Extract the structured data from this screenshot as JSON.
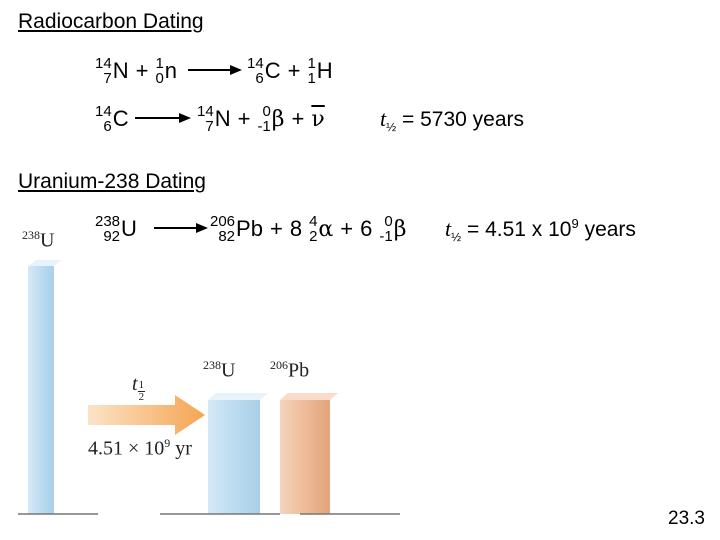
{
  "radiocarbon": {
    "title": "Radiocarbon Dating",
    "reaction1": {
      "left": [
        {
          "mass": "14",
          "atomic": "7",
          "symbol": "N"
        },
        "+",
        {
          "mass": "1",
          "atomic": "0",
          "symbol": "n"
        }
      ],
      "right": [
        {
          "mass": "14",
          "atomic": "6",
          "symbol": "C"
        },
        "+",
        {
          "mass": "1",
          "atomic": "1",
          "symbol": "H"
        }
      ]
    },
    "reaction2": {
      "left": [
        {
          "mass": "14",
          "atomic": "6",
          "symbol": "C"
        }
      ],
      "right": [
        {
          "mass": "14",
          "atomic": "7",
          "symbol": "N"
        },
        "+",
        {
          "mass": "0",
          "atomic": "-1",
          "symbol": "β"
        },
        "+",
        "ν"
      ]
    },
    "half_life": {
      "symbol": "t",
      "subscript": "½",
      "text": "= 5730 years"
    }
  },
  "uranium": {
    "title": "Uranium-238 Dating",
    "reaction": {
      "left": [
        {
          "mass": "238",
          "atomic": "92",
          "symbol": "U"
        }
      ],
      "right": [
        {
          "mass": "206",
          "atomic": "82",
          "symbol": "Pb"
        },
        "+",
        "8",
        {
          "mass": "4",
          "atomic": "2",
          "symbol": "α"
        },
        "+",
        "6",
        {
          "mass": "0",
          "atomic": "-1",
          "symbol": "β"
        }
      ]
    },
    "half_life": {
      "symbol": "t",
      "subscript": "½",
      "text": "= 4.51 x 10",
      "superscript": "9",
      "unit": "years"
    }
  },
  "figure": {
    "bars": [
      {
        "mass": "238",
        "symbol": "U"
      },
      {
        "mass": "238",
        "symbol": "U"
      },
      {
        "mass": "206",
        "symbol": "Pb"
      }
    ],
    "arrow_label": {
      "symbol": "t",
      "numerator": "1",
      "denominator": "2"
    },
    "time": {
      "text": "4.51 × 10",
      "superscript": "9",
      "unit": "yr"
    }
  },
  "slide_number": "23.3"
}
